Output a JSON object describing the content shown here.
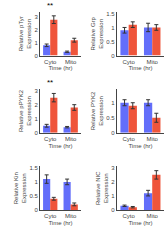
{
  "chart_data": [
    {
      "type": "bar",
      "categories": [
        "Cyto",
        "Mito"
      ],
      "xlabel": "Time (hr)",
      "ylabel": "Relative pTyr\nExpression",
      "series": [
        {
          "color": "#636efa",
          "values": [
            0.8,
            0.3
          ],
          "error": [
            0.1,
            0.05
          ]
        },
        {
          "color": "#ef553b",
          "values": [
            2.8,
            1.2
          ],
          "error": [
            0.3,
            0.15
          ]
        }
      ],
      "ylim": [
        0,
        3.4
      ],
      "yticks": [
        0,
        1,
        2,
        3
      ],
      "grid": false,
      "annotations": [
        {
          "text": "**",
          "x": "Cyto"
        }
      ]
    },
    {
      "type": "bar",
      "categories": [
        "Cyto",
        "Mito"
      ],
      "xlabel": "Time (hr)",
      "ylabel": "Relative Grp\nExpression",
      "series": [
        {
          "color": "#636efa",
          "values": [
            0.9,
            1.0
          ],
          "error": [
            0.1,
            0.15
          ]
        },
        {
          "color": "#ef553b",
          "values": [
            1.1,
            1.0
          ],
          "error": [
            0.1,
            0.1
          ]
        }
      ],
      "ylim": [
        0,
        1.55
      ],
      "yticks": [
        0,
        0.5,
        1,
        1.5
      ],
      "grid": false
    },
    {
      "type": "bar",
      "categories": [
        "Cyto",
        "Mito"
      ],
      "xlabel": "Time (hr)",
      "ylabel": "Relative pPYK2\nExpression",
      "series": [
        {
          "color": "#636efa",
          "values": [
            0.5,
            0.4
          ],
          "error": [
            0.1,
            0.05
          ]
        },
        {
          "color": "#ef553b",
          "values": [
            2.5,
            1.8
          ],
          "error": [
            0.3,
            0.2
          ]
        }
      ],
      "ylim": [
        0,
        3.1
      ],
      "yticks": [
        0,
        1,
        2,
        3
      ],
      "grid": false,
      "annotations": [
        {
          "text": "**",
          "x": "Cyto"
        }
      ]
    },
    {
      "type": "bar",
      "categories": [
        "Cyto",
        "Mito"
      ],
      "xlabel": "Time (hr)",
      "ylabel": "Relative PYK2\nExpression",
      "series": [
        {
          "color": "#636efa",
          "values": [
            1.0,
            1.0
          ],
          "error": [
            0.1,
            0.1
          ]
        },
        {
          "color": "#ef553b",
          "values": [
            0.9,
            0.5
          ],
          "error": [
            0.1,
            0.15
          ]
        }
      ],
      "ylim": [
        0,
        1.45
      ],
      "yticks": [
        0,
        0.5,
        1
      ],
      "grid": false
    },
    {
      "type": "bar",
      "categories": [
        "Cyto",
        "Mito"
      ],
      "xlabel": "Time (hr)",
      "ylabel": "Relative Kin\nExpression",
      "series": [
        {
          "color": "#636efa",
          "values": [
            1.1,
            1.0
          ],
          "error": [
            0.15,
            0.1
          ]
        },
        {
          "color": "#ef553b",
          "values": [
            0.4,
            0.2
          ],
          "error": [
            0.05,
            0.05
          ]
        }
      ],
      "ylim": [
        0,
        1.55
      ],
      "yticks": [
        0,
        0.5,
        1,
        1.5
      ],
      "grid": false
    },
    {
      "type": "bar",
      "categories": [
        "Cyto",
        "Mito"
      ],
      "xlabel": "Time (hr)",
      "ylabel": "Relative NIC\nExpression",
      "series": [
        {
          "color": "#636efa",
          "values": [
            0.3,
            1.2
          ],
          "error": [
            0.05,
            0.2
          ]
        },
        {
          "color": "#ef553b",
          "values": [
            0.2,
            2.5
          ],
          "error": [
            0.05,
            0.3
          ]
        }
      ],
      "ylim": [
        0,
        3.1
      ],
      "yticks": [
        0,
        1,
        2,
        3
      ],
      "grid": false
    }
  ]
}
